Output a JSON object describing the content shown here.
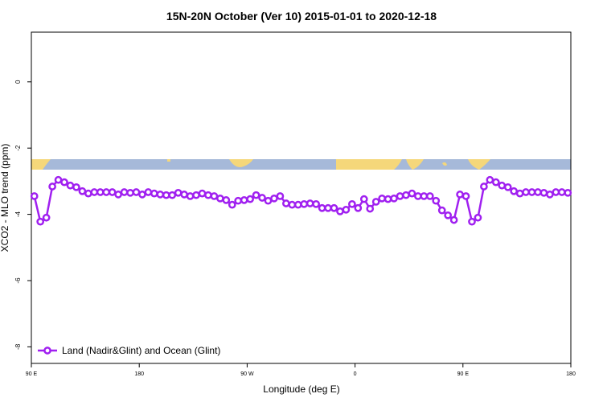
{
  "chart_data": {
    "type": "line",
    "title": "15N-20N October (Ver 10)   2015-01-01 to 2020-12-18",
    "x_label": "Longitude (deg E)",
    "y_label": "XCO2 - MLO trend (ppm)",
    "xlim": [
      90,
      540
    ],
    "ylim": [
      -8.5,
      1.5
    ],
    "xticks": [
      {
        "value": 90,
        "label": "90 E"
      },
      180,
      {
        "value": 270,
        "label": "90 W"
      },
      {
        "value": 360,
        "label": "0"
      },
      {
        "value": 450,
        "label": "90 E"
      },
      {
        "value": 540,
        "label": "180"
      }
    ],
    "yticks": [
      0,
      -2,
      -4,
      -6,
      -8
    ],
    "legend": "bottom-left",
    "series": [
      {
        "name": "Land (Nadir&Glint) and Ocean (Glint)",
        "color": "#a020f0",
        "x": [
          92.5,
          97.5,
          102.5,
          107.5,
          112.5,
          117.5,
          122.5,
          127.5,
          132.5,
          137.5,
          142.5,
          147.5,
          152.5,
          157.5,
          162.5,
          167.5,
          172.5,
          177.5,
          182.5,
          187.5,
          192.5,
          197.5,
          202.5,
          207.5,
          212.5,
          217.5,
          222.5,
          227.5,
          232.5,
          237.5,
          242.5,
          247.5,
          252.5,
          257.5,
          262.5,
          267.5,
          272.5,
          277.5,
          282.5,
          287.5,
          292.5,
          297.5,
          302.5,
          307.5,
          312.5,
          317.5,
          322.5,
          327.5,
          332.5,
          337.5,
          342.5,
          347.5,
          352.5,
          357.5,
          362.5,
          367.5,
          372.5,
          377.5,
          382.5,
          387.5,
          392.5,
          397.5,
          402.5,
          407.5,
          412.5,
          417.5,
          422.5,
          427.5,
          432.5,
          437.5,
          442.5,
          447.5,
          452.5,
          457.5,
          462.5,
          467.5,
          472.5,
          477.5,
          482.5,
          487.5,
          492.5,
          497.5,
          502.5,
          507.5,
          512.5,
          517.5,
          522.5,
          527.5,
          532.5,
          537.5
        ],
        "values": [
          -3.45,
          -4.22,
          -4.1,
          -3.16,
          -2.96,
          -3.03,
          -3.13,
          -3.18,
          -3.3,
          -3.37,
          -3.33,
          -3.33,
          -3.33,
          -3.33,
          -3.4,
          -3.33,
          -3.35,
          -3.33,
          -3.4,
          -3.33,
          -3.37,
          -3.4,
          -3.42,
          -3.42,
          -3.35,
          -3.4,
          -3.45,
          -3.42,
          -3.37,
          -3.42,
          -3.45,
          -3.52,
          -3.57,
          -3.71,
          -3.59,
          -3.57,
          -3.54,
          -3.42,
          -3.5,
          -3.59,
          -3.52,
          -3.45,
          -3.67,
          -3.71,
          -3.71,
          -3.69,
          -3.67,
          -3.69,
          -3.81,
          -3.81,
          -3.81,
          -3.91,
          -3.86,
          -3.69,
          -3.81,
          -3.54,
          -3.83,
          -3.62,
          -3.52,
          -3.54,
          -3.52,
          -3.45,
          -3.42,
          -3.37,
          -3.45,
          -3.45,
          -3.45,
          -3.59,
          -3.88,
          -4.03,
          -4.17,
          -3.4,
          -3.45,
          -4.22,
          -4.1,
          -3.16,
          -2.96,
          -3.03,
          -3.13,
          -3.18,
          -3.3,
          -3.37,
          -3.33,
          -3.33,
          -3.33,
          -3.35,
          -3.4,
          -3.33,
          -3.33,
          -3.35
        ]
      }
    ]
  }
}
